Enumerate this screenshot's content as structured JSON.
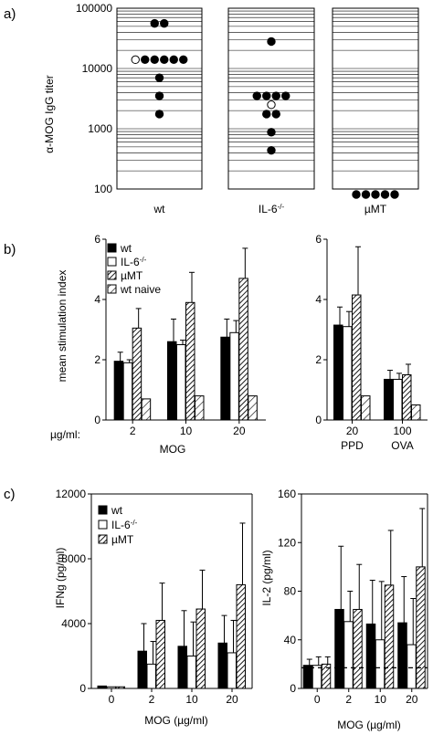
{
  "panel_labels": [
    "a)",
    "b)",
    "c)"
  ],
  "chart_data": [
    {
      "type": "scatter",
      "panel": "a",
      "ylabel": "α-MOG IgG titer",
      "yscale": "log",
      "ylim": [
        100,
        100000
      ],
      "yticks": [
        "100000",
        "10000",
        "1000",
        "100"
      ],
      "groups": [
        {
          "name": "wt",
          "name_sup": "",
          "filled": [
            56000,
            56000,
            14000,
            14000,
            14000,
            14000,
            14000,
            7000,
            3500,
            1750
          ],
          "open": [
            14000
          ]
        },
        {
          "name": "IL-6",
          "name_sup": "-/-",
          "filled": [
            28000,
            3500,
            3500,
            3500,
            3500,
            1750,
            1750,
            875,
            437
          ],
          "open": [
            2500
          ]
        },
        {
          "name": "µMT",
          "name_sup": "",
          "filled": [
            "<100",
            "<100",
            "<100",
            "<100",
            "<100"
          ],
          "open": []
        }
      ]
    },
    {
      "type": "bar",
      "panel": "b-left",
      "ylabel": "mean stimulation index",
      "ylim": [
        0,
        6
      ],
      "yticks": [
        "0",
        "2",
        "4",
        "6"
      ],
      "x_prefix": "µg/ml:",
      "categories": [
        "2",
        "10",
        "20"
      ],
      "xlabel": "MOG",
      "legend": [
        {
          "name": "wt",
          "sup": ""
        },
        {
          "name": "IL-6",
          "sup": "-/-"
        },
        {
          "name": "µMT",
          "sup": ""
        },
        {
          "name": "wt naive",
          "sup": ""
        }
      ],
      "series": [
        {
          "name": "wt",
          "values": [
            1.95,
            2.6,
            2.75
          ],
          "errors": [
            0.3,
            0.75,
            0.6
          ]
        },
        {
          "name": "IL-6-/-",
          "values": [
            1.9,
            2.5,
            2.9
          ],
          "errors": [
            0.1,
            0.15,
            0.4
          ]
        },
        {
          "name": "µMT",
          "values": [
            3.05,
            3.9,
            4.7
          ],
          "errors": [
            0.65,
            1.0,
            1.0
          ]
        },
        {
          "name": "wt naive",
          "values": [
            0.7,
            0.8,
            0.8
          ],
          "errors": [
            0,
            0,
            0
          ]
        }
      ]
    },
    {
      "type": "bar",
      "panel": "b-right",
      "ylim": [
        0,
        6
      ],
      "yticks": [
        "0",
        "2",
        "4",
        "6"
      ],
      "categories": [
        "20",
        "100"
      ],
      "category_sublabels": [
        "PPD",
        "OVA"
      ],
      "series": [
        {
          "name": "wt",
          "values": [
            3.15,
            1.35
          ],
          "errors": [
            0.6,
            0.3
          ]
        },
        {
          "name": "IL-6-/-",
          "values": [
            3.1,
            1.35
          ],
          "errors": [
            0.5,
            0.2
          ]
        },
        {
          "name": "µMT",
          "values": [
            4.15,
            1.5
          ],
          "errors": [
            1.6,
            0.35
          ]
        },
        {
          "name": "wt naive",
          "values": [
            0.8,
            0.5
          ],
          "errors": [
            0,
            0
          ]
        }
      ]
    },
    {
      "type": "bar",
      "panel": "c-left",
      "ylabel": "IFNg (pg/ml)",
      "ylim": [
        0,
        12000
      ],
      "yticks": [
        "0",
        "4000",
        "8000",
        "12000"
      ],
      "categories": [
        "0",
        "2",
        "10",
        "20"
      ],
      "xlabel": "MOG (µg/ml)",
      "legend": [
        {
          "name": "wt",
          "sup": ""
        },
        {
          "name": "IL-6",
          "sup": "-/-"
        },
        {
          "name": "µMT",
          "sup": ""
        }
      ],
      "series": [
        {
          "name": "wt",
          "values": [
            150,
            2300,
            2600,
            2800
          ],
          "errors": [
            0,
            1700,
            2200,
            1700
          ]
        },
        {
          "name": "IL-6-/-",
          "values": [
            100,
            1500,
            2000,
            2200
          ],
          "errors": [
            0,
            1400,
            2100,
            2000
          ]
        },
        {
          "name": "µMT",
          "values": [
            100,
            4200,
            4900,
            6400
          ],
          "errors": [
            0,
            2300,
            2400,
            3800
          ]
        }
      ]
    },
    {
      "type": "bar",
      "panel": "c-right",
      "ylabel": "IL-2 (pg/ml)",
      "ylim": [
        0,
        160
      ],
      "yticks": [
        "0",
        "40",
        "80",
        "120",
        "160"
      ],
      "categories": [
        "0",
        "2",
        "10",
        "20"
      ],
      "xlabel": "MOG (µg/ml)",
      "reference_line": 17,
      "series": [
        {
          "name": "wt",
          "values": [
            19,
            65,
            53,
            54
          ],
          "errors": [
            5,
            52,
            36,
            38
          ]
        },
        {
          "name": "IL-6-/-",
          "values": [
            19,
            55,
            40,
            36
          ],
          "errors": [
            7,
            25,
            48,
            38
          ]
        },
        {
          "name": "µMT",
          "values": [
            20,
            65,
            85,
            100
          ],
          "errors": [
            6,
            37,
            45,
            48
          ]
        }
      ]
    }
  ]
}
